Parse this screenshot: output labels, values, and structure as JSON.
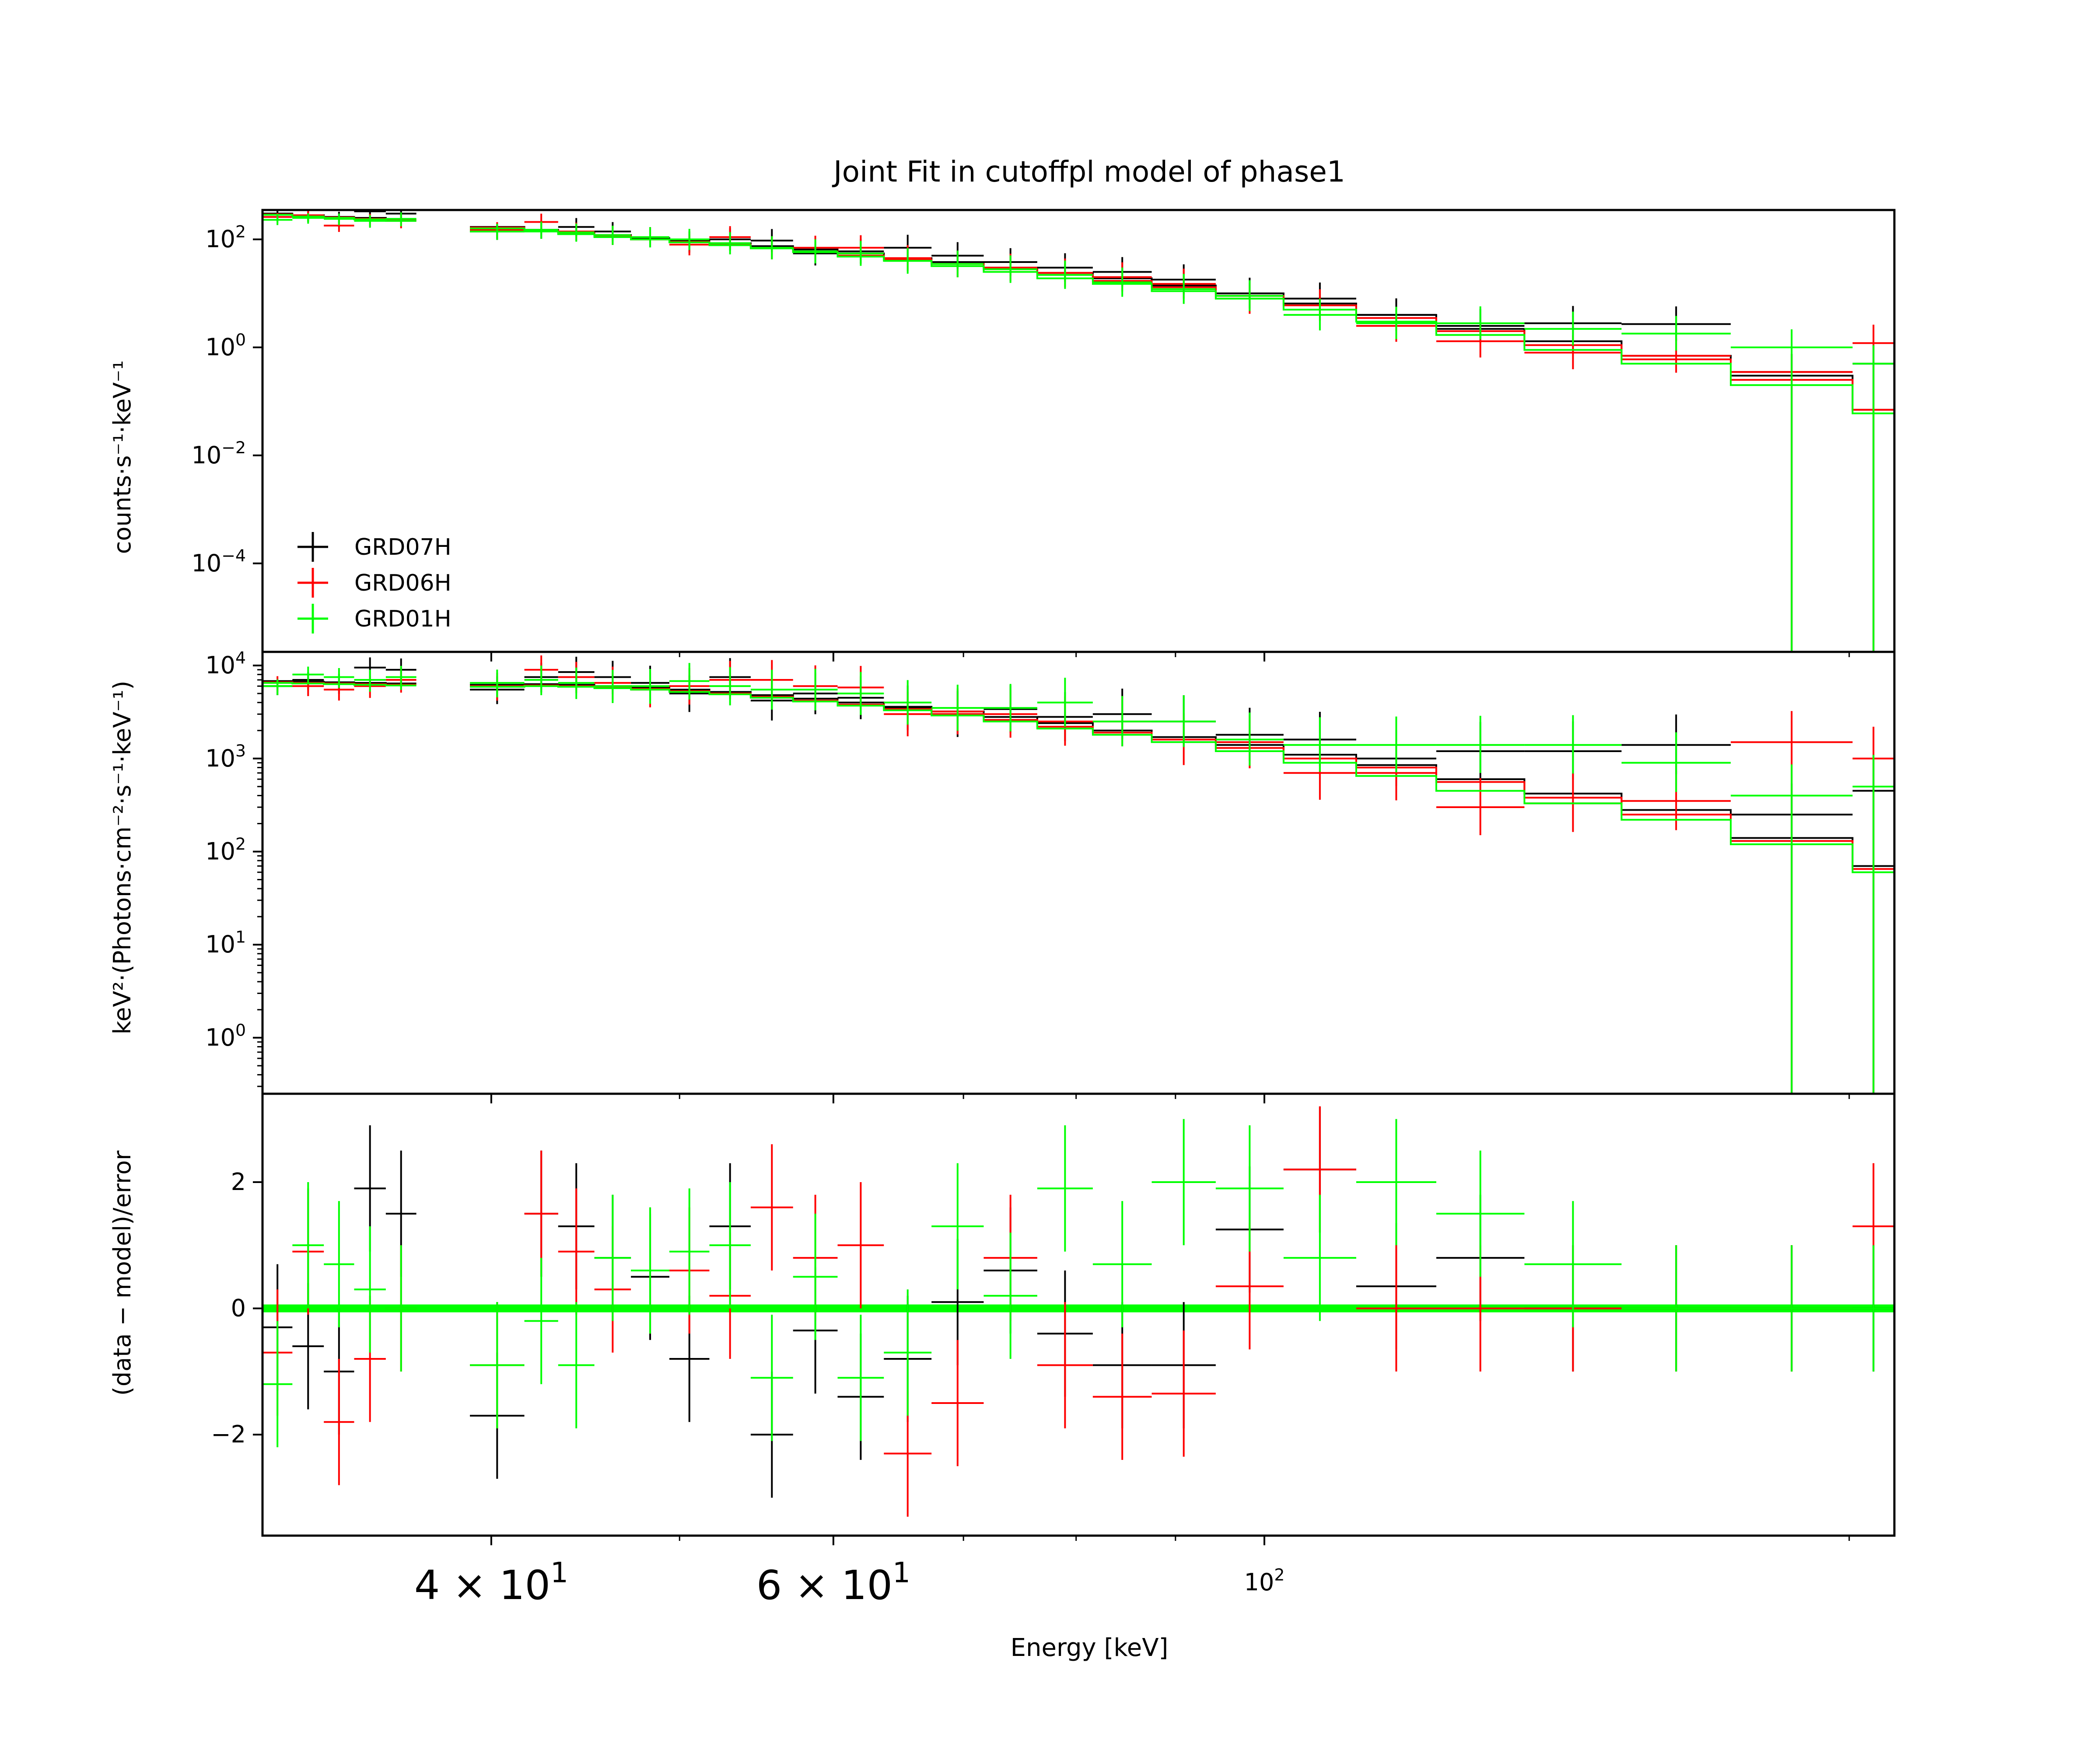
{
  "chart_data": {
    "type": "spectral-fit",
    "title": "Joint Fit  in cutoffpl model of phase1",
    "xlabel": "Energy [keV]",
    "xscale": "log",
    "xlim": [
      30.5,
      211
    ],
    "x_ticks_major": [
      {
        "value": 40,
        "mantissa": "4",
        "times": "×",
        "base": "10",
        "exp": "1"
      },
      {
        "value": 60,
        "mantissa": "6",
        "times": "×",
        "base": "10",
        "exp": "1"
      },
      {
        "value": 100,
        "mantissa": "",
        "times": "",
        "base": "10",
        "exp": "2"
      }
    ],
    "x_ticks_minor": [
      50,
      70,
      80,
      90,
      200
    ],
    "panels": [
      {
        "id": "counts",
        "ylabel": "counts·s⁻¹·keV⁻¹",
        "yscale": "log",
        "ylim": [
          2.3e-06,
          350
        ],
        "ticks": [
          {
            "value": 100,
            "base": "10",
            "exp": "2"
          },
          {
            "value": 1,
            "base": "10",
            "exp": "0"
          },
          {
            "value": 0.01,
            "base": "10",
            "exp": "−2"
          },
          {
            "value": 0.0001,
            "base": "10",
            "exp": "−4"
          }
        ]
      },
      {
        "id": "nufnu",
        "ylabel": "keV²·(Photons·cm⁻²·s⁻¹·keV⁻¹)",
        "yscale": "log",
        "ylim": [
          0.25,
          14000
        ],
        "ticks": [
          {
            "value": 10000,
            "base": "10",
            "exp": "4"
          },
          {
            "value": 1000,
            "base": "10",
            "exp": "3"
          },
          {
            "value": 100,
            "base": "10",
            "exp": "2"
          },
          {
            "value": 10,
            "base": "10",
            "exp": "1"
          },
          {
            "value": 1,
            "base": "10",
            "exp": "0"
          }
        ]
      },
      {
        "id": "resid",
        "ylabel": "(data − model)/error",
        "yscale": "linear",
        "ylim": [
          -3.6,
          3.4
        ],
        "ticks": [
          {
            "value": 2,
            "label": "2"
          },
          {
            "value": 0,
            "label": "0"
          },
          {
            "value": -2,
            "label": "−2"
          }
        ]
      }
    ],
    "legend": {
      "position": "lower-left",
      "entries": [
        {
          "name": "GRD07H",
          "color": "#000000"
        },
        {
          "name": "GRD06H",
          "color": "#ff0000"
        },
        {
          "name": "GRD01H",
          "color": "#00ff00"
        }
      ]
    },
    "series": [
      {
        "name": "GRD07H",
        "color": "#000000",
        "bin_edges": [
          30.5,
          31.6,
          32.8,
          34,
          35.3,
          36.6,
          39,
          41.6,
          43.3,
          45.2,
          47.2,
          49.4,
          51.8,
          54.4,
          57.2,
          60.3,
          63.7,
          67.4,
          71.7,
          76.4,
          81.6,
          87.5,
          94.4,
          102.3,
          111.5,
          122.6,
          136.1,
          152.7,
          173.8,
          200.8,
          211
        ],
        "data_counts": [
          300,
          270,
          260,
          330,
          300,
          0,
          140,
          150,
          170,
          140,
          110,
          90,
          100,
          95,
          55,
          60,
          70,
          50,
          38,
          30,
          25,
          18,
          10,
          8,
          4,
          2.5,
          2.8,
          2.7,
          0.35,
          0.5
        ],
        "model_counts": [
          300,
          280,
          260,
          250,
          230,
          0,
          170,
          150,
          135,
          120,
          105,
          95,
          85,
          75,
          65,
          55,
          45,
          38,
          30,
          24,
          19,
          14,
          10,
          6.5,
          4,
          2.2,
          1.3,
          0.7,
          0.3,
          0.07
        ],
        "data_nufnu": [
          6000,
          7000,
          6500,
          9500,
          9000,
          0,
          5500,
          7500,
          8500,
          7500,
          6500,
          5000,
          7500,
          4200,
          5000,
          4500,
          3500,
          3000,
          3400,
          2800,
          3000,
          2500,
          1800,
          1600,
          1000,
          1200,
          1200,
          1400,
          250,
          450
        ],
        "model_nufnu": [
          6800,
          6700,
          6600,
          6500,
          6400,
          0,
          6200,
          6300,
          6200,
          6000,
          5800,
          5500,
          5200,
          4800,
          4400,
          4000,
          3600,
          3200,
          2800,
          2400,
          2000,
          1700,
          1400,
          1100,
          850,
          600,
          420,
          280,
          140,
          70
        ],
        "residuals": [
          -0.3,
          -0.6,
          -1,
          1.9,
          1.5,
          0,
          -1.7,
          1.5,
          1.3,
          0.8,
          0.5,
          -0.8,
          1.3,
          -2,
          -0.35,
          -1.4,
          -0.8,
          0.1,
          0.6,
          -0.4,
          -0.9,
          -0.9,
          1.25,
          2.2,
          0.35,
          0.8,
          0,
          0,
          0,
          0
        ]
      },
      {
        "name": "GRD06H",
        "color": "#ff0000",
        "bin_edges": [
          30.5,
          31.6,
          32.8,
          34,
          35.3,
          36.6,
          39,
          41.6,
          43.3,
          45.2,
          47.2,
          49.4,
          51.8,
          54.4,
          57.2,
          60.3,
          63.7,
          67.4,
          71.7,
          76.4,
          81.6,
          87.5,
          94.4,
          102.3,
          111.5,
          122.6,
          136.1,
          152.7,
          173.8,
          200.8,
          211
        ],
        "data_counts": [
          260,
          280,
          180,
          230,
          220,
          0,
          150,
          210,
          140,
          120,
          110,
          80,
          110,
          70,
          70,
          70,
          45,
          35,
          30,
          24,
          20,
          15,
          8,
          6,
          2.5,
          1.3,
          0.8,
          0.7,
          0.35,
          1.2
        ],
        "model_counts": [
          290,
          270,
          255,
          240,
          225,
          0,
          165,
          145,
          130,
          115,
          100,
          90,
          80,
          70,
          60,
          50,
          42,
          35,
          28,
          22,
          17,
          13,
          9,
          6,
          3.5,
          2,
          1.1,
          0.6,
          0.25,
          0.07
        ],
        "data_nufnu": [
          6500,
          6000,
          5500,
          6000,
          7000,
          0,
          6000,
          9000,
          7500,
          6500,
          5500,
          6000,
          7000,
          7000,
          6000,
          5800,
          3000,
          3200,
          3000,
          2500,
          2500,
          1600,
          1500,
          700,
          700,
          300,
          330,
          350,
          1500,
          1000
        ],
        "model_nufnu": [
          6600,
          6500,
          6400,
          6300,
          6200,
          0,
          6000,
          6100,
          6000,
          5800,
          5600,
          5300,
          5000,
          4600,
          4200,
          3800,
          3400,
          3000,
          2600,
          2200,
          1900,
          1600,
          1300,
          1000,
          800,
          560,
          380,
          250,
          130,
          65
        ],
        "residuals": [
          -0.7,
          0.9,
          -1.8,
          -0.8,
          0,
          0,
          -0.9,
          1.5,
          0.9,
          0.3,
          0.6,
          0.6,
          0.2,
          1.6,
          0.8,
          1.0,
          -2.3,
          -1.5,
          0.8,
          -0.9,
          -1.4,
          -1.35,
          0.35,
          2.2,
          0,
          0,
          0,
          0,
          0,
          1.3
        ]
      },
      {
        "name": "GRD01H",
        "color": "#00ff00",
        "bin_edges": [
          30.5,
          31.6,
          32.8,
          34,
          35.3,
          36.6,
          39,
          41.6,
          43.3,
          45.2,
          47.2,
          49.4,
          51.8,
          54.4,
          57.2,
          60.3,
          63.7,
          67.4,
          71.7,
          76.4,
          81.6,
          87.5,
          94.4,
          102.3,
          111.5,
          122.6,
          136.1,
          152.7,
          173.8,
          200.8,
          211
        ],
        "data_counts": [
          230,
          250,
          240,
          220,
          240,
          0,
          140,
          150,
          135,
          120,
          110,
          100,
          85,
          70,
          60,
          55,
          40,
          35,
          28,
          22,
          16,
          12,
          9,
          4,
          2.8,
          2.8,
          2.2,
          1.8,
          1.0,
          0.5
        ],
        "model_counts": [
          285,
          265,
          250,
          235,
          220,
          0,
          160,
          140,
          125,
          110,
          100,
          88,
          78,
          68,
          58,
          48,
          40,
          32,
          25,
          19,
          15,
          11,
          8,
          5,
          3,
          1.7,
          0.9,
          0.5,
          0.2,
          0.06
        ],
        "data_nufnu": [
          6000,
          8000,
          7500,
          7000,
          7500,
          0,
          6500,
          7000,
          6500,
          6000,
          6000,
          6800,
          6000,
          5500,
          5500,
          5000,
          4000,
          3500,
          3500,
          4000,
          2500,
          2500,
          1600,
          1400,
          1400,
          1400,
          1400,
          900,
          400,
          500
        ],
        "model_nufnu": [
          6500,
          6400,
          6300,
          6200,
          6100,
          0,
          5900,
          6000,
          5900,
          5700,
          5500,
          5200,
          4900,
          4500,
          4100,
          3700,
          3300,
          2900,
          2500,
          2100,
          1800,
          1500,
          1200,
          900,
          650,
          450,
          330,
          220,
          120,
          60
        ],
        "residuals": [
          -1.2,
          1.0,
          0.7,
          0.3,
          0,
          0,
          -0.9,
          -0.2,
          -0.9,
          0.8,
          0.6,
          0.9,
          1.0,
          -1.1,
          0.5,
          -1.1,
          -0.7,
          1.3,
          0.2,
          1.9,
          0.7,
          2.0,
          1.9,
          0.8,
          2.0,
          1.5,
          0.7,
          0,
          0,
          0
        ]
      }
    ]
  }
}
